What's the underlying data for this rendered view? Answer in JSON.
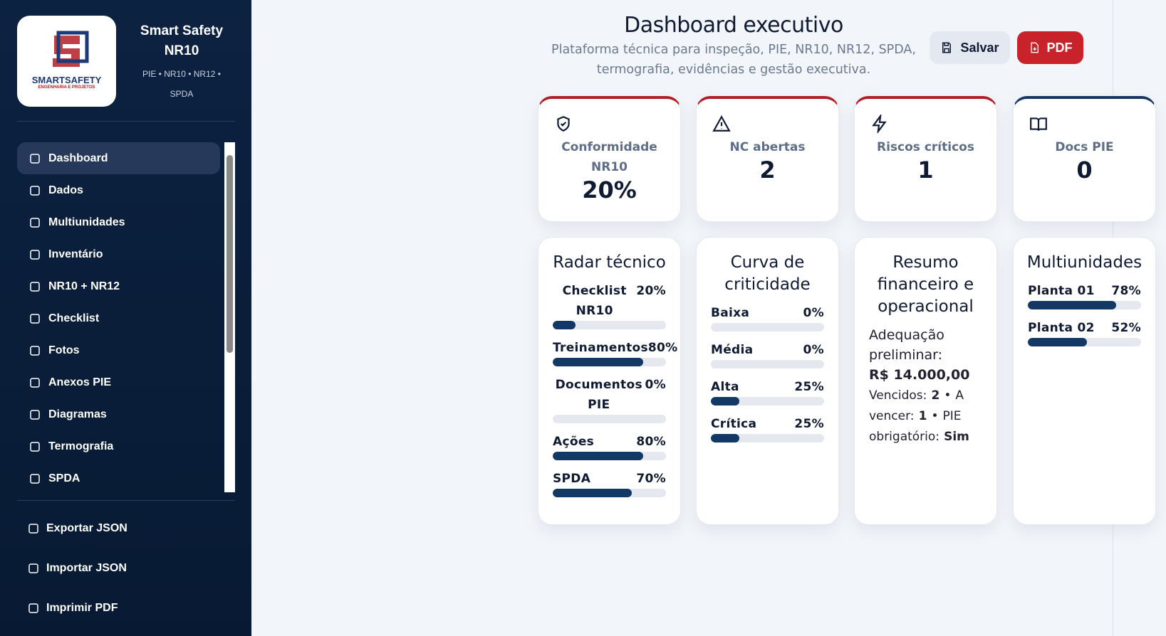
{
  "sidebar": {
    "brand": {
      "logo_text": "SMARTSAFETY",
      "logo_subtext": "ENGENHARIA E PROJETOS",
      "title": "Smart Safety NR10",
      "subtitle": "PIE • NR10 • NR12 • SPDA"
    },
    "nav": [
      "Dashboard",
      "Dados",
      "Multiunidades",
      "Inventário",
      "NR10 + NR12",
      "Checklist",
      "Fotos",
      "Anexos PIE",
      "Diagramas",
      "Termografia",
      "SPDA"
    ],
    "actions": [
      "Exportar JSON",
      "Importar JSON",
      "Imprimir PDF"
    ]
  },
  "header": {
    "title": "Dashboard executivo",
    "subtitle": "Plataforma técnica para inspeção, PIE, NR10, NR12, SPDA, termografia, evidências e gestão executiva.",
    "buttons": [
      "Salvar",
      "PDF"
    ]
  },
  "kpis": [
    {
      "label": "Conformidade NR10",
      "value": "20%"
    },
    {
      "label": "NC abertas",
      "value": "2"
    },
    {
      "label": "Riscos críticos",
      "value": "1"
    },
    {
      "label": "Docs PIE",
      "value": "0"
    }
  ],
  "radar": {
    "title": "Radar técnico",
    "rows": [
      {
        "label": "Checklist NR10",
        "value": 20,
        "value_label": "20%"
      },
      {
        "label": "Treinamentos",
        "value": 80,
        "value_label": "80%"
      },
      {
        "label": "Documentos PIE",
        "value": 0,
        "value_label": "0%"
      },
      {
        "label": "Ações",
        "value": 80,
        "value_label": "80%"
      },
      {
        "label": "SPDA",
        "value": 70,
        "value_label": "70%"
      }
    ]
  },
  "curva": {
    "title": "Curva de criticidade",
    "rows": [
      {
        "label": "Baixa",
        "value": 0,
        "value_label": "0%"
      },
      {
        "label": "Média",
        "value": 0,
        "value_label": "0%"
      },
      {
        "label": "Alta",
        "value": 25,
        "value_label": "25%"
      },
      {
        "label": "Crítica",
        "value": 25,
        "value_label": "25%"
      }
    ]
  },
  "resumo": {
    "title": "Resumo financeiro e operacional",
    "adequacao_label": "Adequação preliminar:",
    "adequacao_value": "R$ 14.000,00",
    "vencidos_label": "Vencidos:",
    "vencidos_value": "2",
    "separator": "•",
    "a_vencer_label": "A vencer:",
    "a_vencer_value": "1",
    "pie_label": "PIE obrigatório:",
    "pie_value": "Sim"
  },
  "multi": {
    "title": "Multiunidades",
    "rows": [
      {
        "label": "Planta 01",
        "value": 78,
        "value_label": "78%"
      },
      {
        "label": "Planta 02",
        "value": 52,
        "value_label": "52%"
      }
    ]
  }
}
